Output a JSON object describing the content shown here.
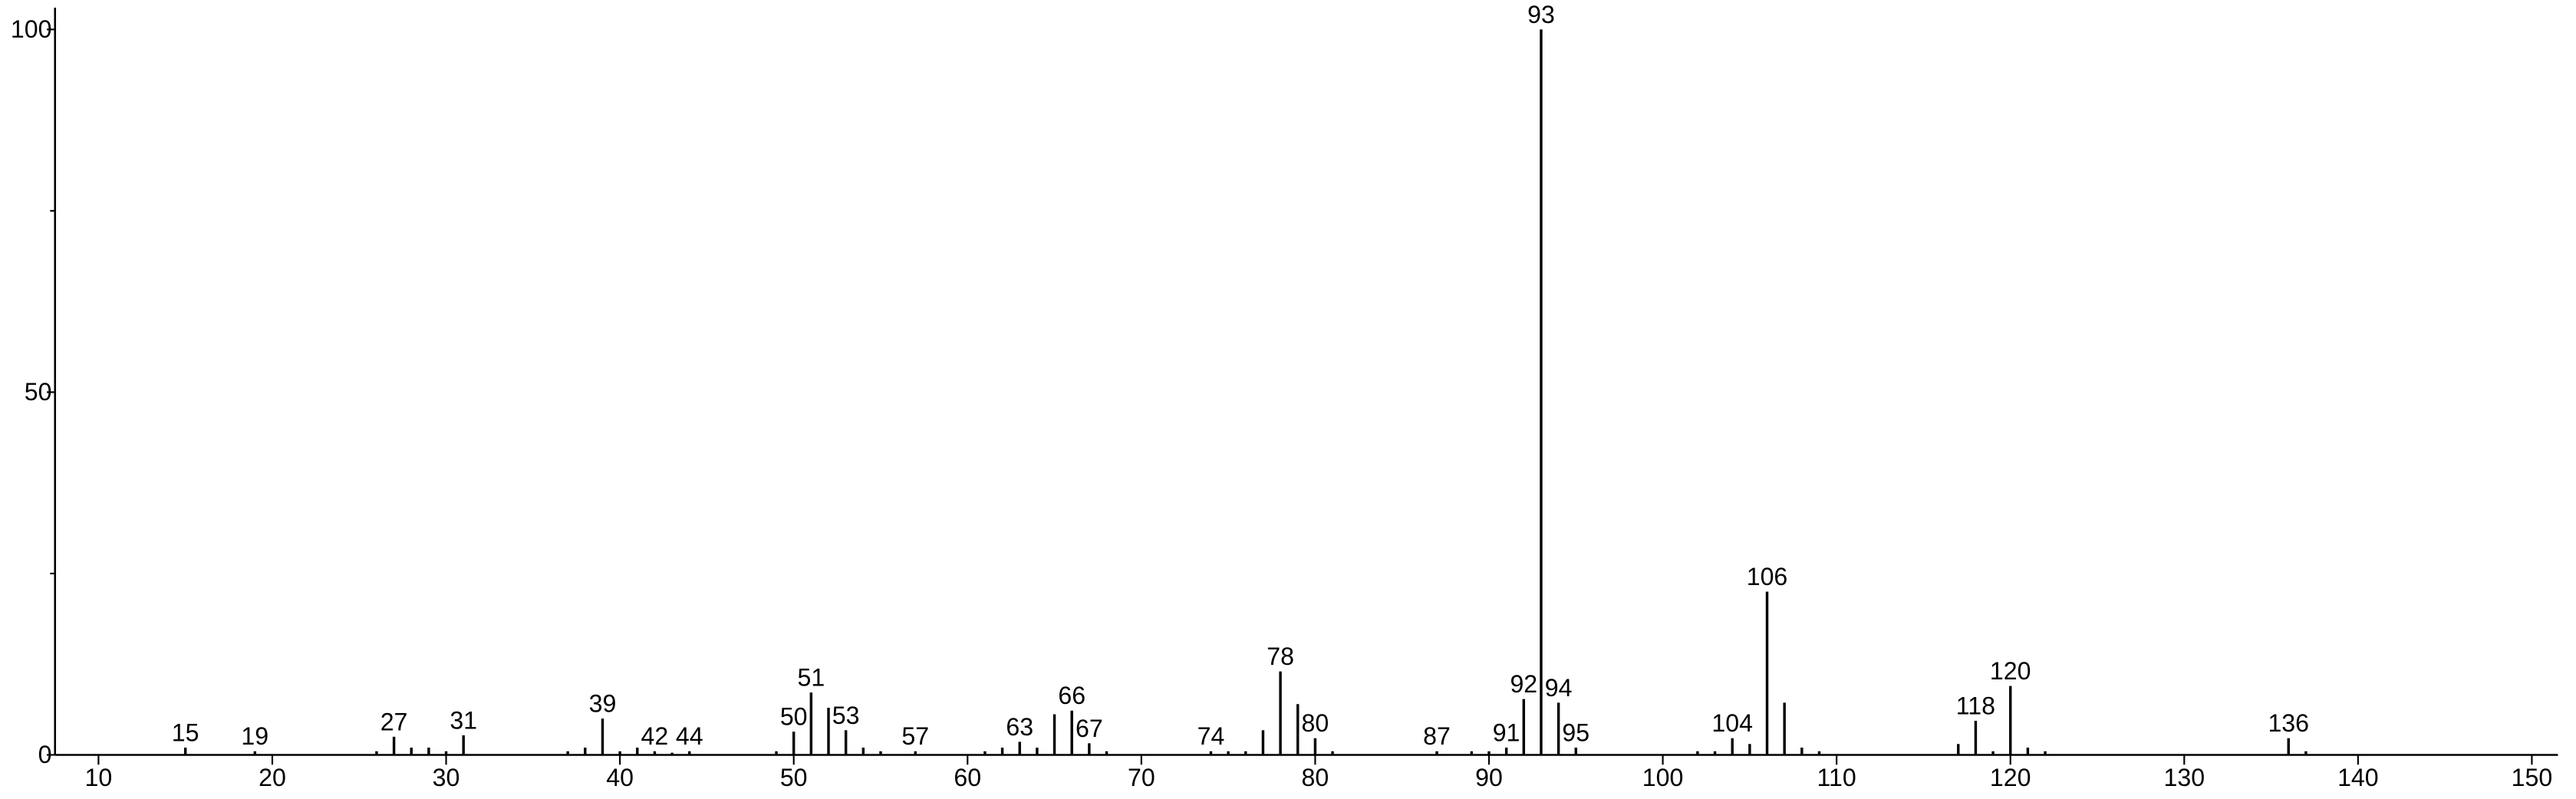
{
  "chart_data": {
    "type": "stem",
    "color": "#000000",
    "x": [
      15,
      19,
      26,
      27,
      28,
      29,
      30,
      31,
      37,
      38,
      39,
      40,
      41,
      42,
      43,
      44,
      49,
      50,
      51,
      52,
      53,
      54,
      55,
      57,
      61,
      62,
      63,
      64,
      65,
      66,
      67,
      68,
      74,
      75,
      76,
      77,
      78,
      79,
      80,
      81,
      87,
      89,
      90,
      91,
      92,
      93,
      94,
      95,
      102,
      103,
      104,
      105,
      106,
      107,
      108,
      109,
      117,
      118,
      119,
      120,
      121,
      122,
      136,
      137
    ],
    "values": [
      1,
      0.5,
      0.5,
      2.5,
      1,
      1,
      0.5,
      2.7,
      0.5,
      1,
      5,
      0.5,
      1,
      0.5,
      0.3,
      0.5,
      0.5,
      3.2,
      8.6,
      6.5,
      3.4,
      1,
      0.5,
      0.5,
      0.5,
      1,
      1.8,
      1,
      5.6,
      6.1,
      1.6,
      0.5,
      0.5,
      0.5,
      0.5,
      3.4,
      11.5,
      7,
      2.3,
      0.5,
      0.5,
      0.5,
      0.5,
      1,
      7.7,
      100,
      7.2,
      1,
      0.5,
      0.5,
      2.3,
      1.5,
      22.5,
      7.2,
      1,
      0.5,
      1.5,
      4.7,
      0.5,
      9.5,
      1,
      0.5,
      2.3,
      0.5
    ],
    "x_labels": [
      15,
      19,
      null,
      27,
      null,
      null,
      null,
      31,
      null,
      null,
      39,
      null,
      null,
      42,
      null,
      44,
      null,
      50,
      51,
      null,
      53,
      null,
      null,
      57,
      null,
      null,
      63,
      null,
      null,
      66,
      67,
      null,
      74,
      null,
      null,
      null,
      78,
      null,
      80,
      null,
      87,
      null,
      null,
      91,
      92,
      93,
      94,
      95,
      null,
      null,
      104,
      null,
      106,
      null,
      null,
      null,
      null,
      118,
      null,
      120,
      null,
      null,
      136,
      null
    ],
    "xlim": [
      7.5,
      151.5
    ],
    "xticks": [
      10,
      20,
      30,
      40,
      50,
      60,
      70,
      80,
      90,
      100,
      110,
      120,
      130,
      140,
      150
    ],
    "ylim": [
      0,
      103
    ],
    "yticks": [
      0,
      50,
      100
    ],
    "yminor": [
      25,
      75
    ]
  }
}
